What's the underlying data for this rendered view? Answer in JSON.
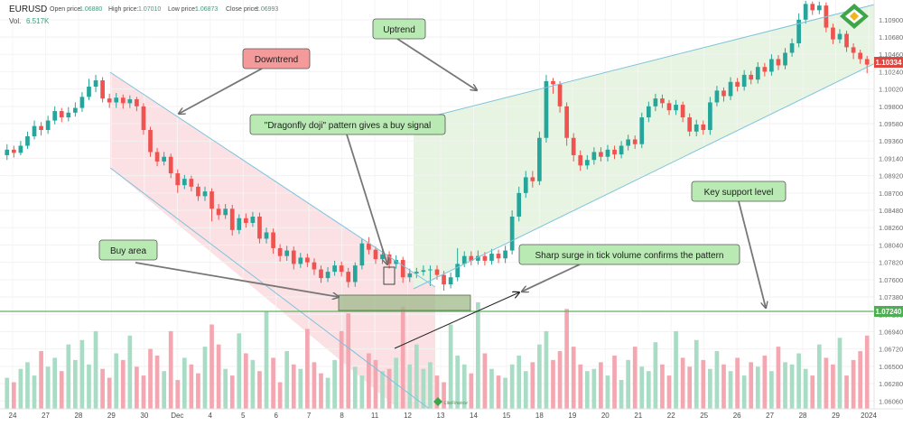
{
  "header": {
    "symbol": "EURUSD",
    "open_label": "Open price:",
    "open_value": "1.06880",
    "high_label": "High price:",
    "high_value": "1.07010",
    "low_label": "Low price:",
    "low_value": "1.06873",
    "close_label": "Close price:",
    "close_value": "1.06993",
    "vol_label": "Vol.",
    "vol_value": "6.517K"
  },
  "price_tags": {
    "current": "1.10334",
    "support": "1.07240"
  },
  "annotations": {
    "downtrend": "Downtrend",
    "uptrend": "Uptrend",
    "doji": "\"Dragonfly doji\" pattern gives a buy signal",
    "key_support": "Key support level",
    "buy_area": "Buy area",
    "surge": "Sharp surge in tick volume confirms the pattern"
  },
  "logo_text": "LiteFinance",
  "colors": {
    "bull": "#26a69a",
    "bear": "#ef5350",
    "bull_volume": "#a8dcc4",
    "bear_volume": "#f4a7b0",
    "downtrend_fill": "#fbe0e4",
    "uptrend_fill": "#e6f4e1",
    "channel_line": "#7ec3dd",
    "support_line": "#5fb560",
    "callout_green": "#b9eab4",
    "callout_red": "#f59a9a",
    "buy_area_fill": "#9fb98a"
  },
  "chart_data": {
    "type": "candlestick",
    "series": [
      {
        "name": "EURUSD",
        "kind": "ohlc"
      },
      {
        "name": "Vol.",
        "kind": "volume"
      }
    ],
    "y_ticks": [
      "1.10900",
      "1.10680",
      "1.10460",
      "1.10240",
      "1.10020",
      "1.09800",
      "1.09580",
      "1.09360",
      "1.09140",
      "1.08920",
      "1.08700",
      "1.08480",
      "1.08260",
      "1.08040",
      "1.07820",
      "1.07600",
      "1.07380",
      "1.07160",
      "1.06940",
      "1.06720",
      "1.06500",
      "1.06280",
      "1.06060"
    ],
    "x_ticks": [
      "24",
      "27",
      "28",
      "29",
      "30",
      "Dec",
      "4",
      "5",
      "6",
      "7",
      "8",
      "11",
      "12",
      "13",
      "14",
      "15",
      "18",
      "19",
      "20",
      "21",
      "22",
      "25",
      "26",
      "27",
      "28",
      "29",
      "2024"
    ],
    "ylim": [
      1.0596,
      1.1115
    ],
    "key_support_level": 1.0724,
    "current_price": 1.10334,
    "candles": [
      {
        "o": 1.0918,
        "c": 1.0925,
        "h": 1.0932,
        "l": 1.0912
      },
      {
        "o": 1.0925,
        "c": 1.0921,
        "h": 1.093,
        "l": 1.0915
      },
      {
        "o": 1.0921,
        "c": 1.093,
        "h": 1.0936,
        "l": 1.0918
      },
      {
        "o": 1.093,
        "c": 1.0942,
        "h": 1.0948,
        "l": 1.0926
      },
      {
        "o": 1.0942,
        "c": 1.0955,
        "h": 1.0962,
        "l": 1.0938
      },
      {
        "o": 1.0955,
        "c": 1.095,
        "h": 1.096,
        "l": 1.0943
      },
      {
        "o": 1.095,
        "c": 1.0962,
        "h": 1.0968,
        "l": 1.0945
      },
      {
        "o": 1.0962,
        "c": 1.0974,
        "h": 1.098,
        "l": 1.0957
      },
      {
        "o": 1.0974,
        "c": 1.0966,
        "h": 1.0978,
        "l": 1.096
      },
      {
        "o": 1.0966,
        "c": 1.0972,
        "h": 1.0979,
        "l": 1.0961
      },
      {
        "o": 1.0972,
        "c": 1.0978,
        "h": 1.0985,
        "l": 1.0967
      },
      {
        "o": 1.0978,
        "c": 1.0992,
        "h": 1.0998,
        "l": 1.0973
      },
      {
        "o": 1.0992,
        "c": 1.1005,
        "h": 1.1015,
        "l": 1.0988
      },
      {
        "o": 1.1005,
        "c": 1.1013,
        "h": 1.102,
        "l": 1.0998
      },
      {
        "o": 1.1013,
        "c": 1.099,
        "h": 1.1017,
        "l": 1.0985
      },
      {
        "o": 1.099,
        "c": 1.0985,
        "h": 1.0996,
        "l": 1.0978
      },
      {
        "o": 1.0985,
        "c": 1.0991,
        "h": 1.0997,
        "l": 1.0978
      },
      {
        "o": 1.0991,
        "c": 1.0984,
        "h": 1.0995,
        "l": 1.0977
      },
      {
        "o": 1.0984,
        "c": 1.0989,
        "h": 1.0994,
        "l": 1.0978
      },
      {
        "o": 1.0989,
        "c": 1.098,
        "h": 1.0992,
        "l": 1.0974
      },
      {
        "o": 1.098,
        "c": 1.095,
        "h": 1.0984,
        "l": 1.0944
      },
      {
        "o": 1.095,
        "c": 1.0922,
        "h": 1.0954,
        "l": 1.0916
      },
      {
        "o": 1.0922,
        "c": 1.091,
        "h": 1.0927,
        "l": 1.0904
      },
      {
        "o": 1.091,
        "c": 1.0916,
        "h": 1.0922,
        "l": 1.0905
      },
      {
        "o": 1.0916,
        "c": 1.0895,
        "h": 1.092,
        "l": 1.0889
      },
      {
        "o": 1.0895,
        "c": 1.088,
        "h": 1.09,
        "l": 1.087
      },
      {
        "o": 1.088,
        "c": 1.0888,
        "h": 1.0893,
        "l": 1.0875
      },
      {
        "o": 1.0888,
        "c": 1.0878,
        "h": 1.0892,
        "l": 1.0872
      },
      {
        "o": 1.0878,
        "c": 1.0866,
        "h": 1.0882,
        "l": 1.086
      },
      {
        "o": 1.0866,
        "c": 1.0872,
        "h": 1.0878,
        "l": 1.086
      },
      {
        "o": 1.0872,
        "c": 1.085,
        "h": 1.0876,
        "l": 1.0834
      },
      {
        "o": 1.085,
        "c": 1.0842,
        "h": 1.0856,
        "l": 1.0836
      },
      {
        "o": 1.0842,
        "c": 1.085,
        "h": 1.0856,
        "l": 1.0837
      },
      {
        "o": 1.085,
        "c": 1.0823,
        "h": 1.0855,
        "l": 1.0816
      },
      {
        "o": 1.0823,
        "c": 1.0838,
        "h": 1.0843,
        "l": 1.0818
      },
      {
        "o": 1.0838,
        "c": 1.0832,
        "h": 1.0844,
        "l": 1.0826
      },
      {
        "o": 1.0832,
        "c": 1.084,
        "h": 1.0846,
        "l": 1.0827
      },
      {
        "o": 1.084,
        "c": 1.0812,
        "h": 1.0845,
        "l": 1.0806
      },
      {
        "o": 1.0812,
        "c": 1.082,
        "h": 1.0826,
        "l": 1.0806
      },
      {
        "o": 1.082,
        "c": 1.08,
        "h": 1.0825,
        "l": 1.0793
      },
      {
        "o": 1.08,
        "c": 1.079,
        "h": 1.0805,
        "l": 1.0783
      },
      {
        "o": 1.079,
        "c": 1.0797,
        "h": 1.0803,
        "l": 1.0784
      },
      {
        "o": 1.0797,
        "c": 1.078,
        "h": 1.0802,
        "l": 1.0773
      },
      {
        "o": 1.078,
        "c": 1.0788,
        "h": 1.0794,
        "l": 1.0775
      },
      {
        "o": 1.0788,
        "c": 1.0782,
        "h": 1.0793,
        "l": 1.0776
      },
      {
        "o": 1.0782,
        "c": 1.0773,
        "h": 1.0787,
        "l": 1.0766
      },
      {
        "o": 1.0773,
        "c": 1.0762,
        "h": 1.0778,
        "l": 1.0756
      },
      {
        "o": 1.0762,
        "c": 1.077,
        "h": 1.0776,
        "l": 1.0757
      },
      {
        "o": 1.077,
        "c": 1.0778,
        "h": 1.0784,
        "l": 1.0765
      },
      {
        "o": 1.0778,
        "c": 1.077,
        "h": 1.0783,
        "l": 1.0764
      },
      {
        "o": 1.077,
        "c": 1.0757,
        "h": 1.0775,
        "l": 1.075
      },
      {
        "o": 1.0757,
        "c": 1.0778,
        "h": 1.0782,
        "l": 1.0751
      },
      {
        "o": 1.0778,
        "c": 1.0806,
        "h": 1.0812,
        "l": 1.0773
      },
      {
        "o": 1.0806,
        "c": 1.0798,
        "h": 1.0814,
        "l": 1.0792
      },
      {
        "o": 1.0798,
        "c": 1.0786,
        "h": 1.0802,
        "l": 1.078
      },
      {
        "o": 1.0786,
        "c": 1.0792,
        "h": 1.0798,
        "l": 1.078
      },
      {
        "o": 1.0792,
        "c": 1.078,
        "h": 1.0796,
        "l": 1.0774
      },
      {
        "o": 1.078,
        "c": 1.0785,
        "h": 1.0791,
        "l": 1.0774
      },
      {
        "o": 1.0785,
        "c": 1.0763,
        "h": 1.0789,
        "l": 1.0756
      },
      {
        "o": 1.0763,
        "c": 1.0768,
        "h": 1.0774,
        "l": 1.0757
      },
      {
        "o": 1.0768,
        "c": 1.077,
        "h": 1.0775,
        "l": 1.0762
      },
      {
        "o": 1.077,
        "c": 1.0772,
        "h": 1.0778,
        "l": 1.0765
      },
      {
        "o": 1.0772,
        "c": 1.0773,
        "h": 1.0778,
        "l": 1.0752
      },
      {
        "o": 1.0773,
        "c": 1.0766,
        "h": 1.0778,
        "l": 1.076
      },
      {
        "o": 1.0766,
        "c": 1.0754,
        "h": 1.0771,
        "l": 1.0746
      },
      {
        "o": 1.0754,
        "c": 1.0763,
        "h": 1.0769,
        "l": 1.0749
      },
      {
        "o": 1.0763,
        "c": 1.078,
        "h": 1.08,
        "l": 1.0758
      },
      {
        "o": 1.078,
        "c": 1.079,
        "h": 1.0796,
        "l": 1.0776
      },
      {
        "o": 1.079,
        "c": 1.0784,
        "h": 1.0796,
        "l": 1.0778
      },
      {
        "o": 1.0784,
        "c": 1.079,
        "h": 1.0797,
        "l": 1.0779
      },
      {
        "o": 1.079,
        "c": 1.0784,
        "h": 1.0795,
        "l": 1.0778
      },
      {
        "o": 1.0784,
        "c": 1.0793,
        "h": 1.0799,
        "l": 1.0779
      },
      {
        "o": 1.0793,
        "c": 1.0787,
        "h": 1.0798,
        "l": 1.0781
      },
      {
        "o": 1.0787,
        "c": 1.0797,
        "h": 1.0803,
        "l": 1.0781
      },
      {
        "o": 1.0797,
        "c": 1.084,
        "h": 1.0848,
        "l": 1.0792
      },
      {
        "o": 1.084,
        "c": 1.087,
        "h": 1.0878,
        "l": 1.0834
      },
      {
        "o": 1.087,
        "c": 1.089,
        "h": 1.0898,
        "l": 1.0864
      },
      {
        "o": 1.089,
        "c": 1.0885,
        "h": 1.0898,
        "l": 1.0877
      },
      {
        "o": 1.0885,
        "c": 1.094,
        "h": 1.0948,
        "l": 1.088
      },
      {
        "o": 1.094,
        "c": 1.1012,
        "h": 1.102,
        "l": 1.0934
      },
      {
        "o": 1.1012,
        "c": 1.1008,
        "h": 1.1016,
        "l": 1.0996
      },
      {
        "o": 1.1008,
        "c": 1.098,
        "h": 1.1012,
        "l": 1.0972
      },
      {
        "o": 1.098,
        "c": 1.094,
        "h": 1.0985,
        "l": 1.093
      },
      {
        "o": 1.094,
        "c": 1.0918,
        "h": 1.0946,
        "l": 1.091
      },
      {
        "o": 1.0918,
        "c": 1.0905,
        "h": 1.0924,
        "l": 1.0898
      },
      {
        "o": 1.0905,
        "c": 1.0912,
        "h": 1.0918,
        "l": 1.09
      },
      {
        "o": 1.0912,
        "c": 1.0922,
        "h": 1.0928,
        "l": 1.0906
      },
      {
        "o": 1.0922,
        "c": 1.0916,
        "h": 1.0928,
        "l": 1.091
      },
      {
        "o": 1.0916,
        "c": 1.0925,
        "h": 1.0931,
        "l": 1.091
      },
      {
        "o": 1.0925,
        "c": 1.0919,
        "h": 1.093,
        "l": 1.0913
      },
      {
        "o": 1.0919,
        "c": 1.093,
        "h": 1.0936,
        "l": 1.0914
      },
      {
        "o": 1.093,
        "c": 1.0938,
        "h": 1.0944,
        "l": 1.0924
      },
      {
        "o": 1.0938,
        "c": 1.0932,
        "h": 1.0943,
        "l": 1.0926
      },
      {
        "o": 1.0932,
        "c": 1.0966,
        "h": 1.0972,
        "l": 1.0927
      },
      {
        "o": 1.0966,
        "c": 1.098,
        "h": 1.0986,
        "l": 1.096
      },
      {
        "o": 1.098,
        "c": 1.099,
        "h": 1.0996,
        "l": 1.0974
      },
      {
        "o": 1.099,
        "c": 1.0984,
        "h": 1.0995,
        "l": 1.0978
      },
      {
        "o": 1.0984,
        "c": 1.0975,
        "h": 1.0988,
        "l": 1.0969
      },
      {
        "o": 1.0975,
        "c": 1.0982,
        "h": 1.0988,
        "l": 1.0969
      },
      {
        "o": 1.0982,
        "c": 1.0966,
        "h": 1.0986,
        "l": 1.096
      },
      {
        "o": 1.0966,
        "c": 1.0948,
        "h": 1.0971,
        "l": 1.0942
      },
      {
        "o": 1.0948,
        "c": 1.0957,
        "h": 1.0963,
        "l": 1.0942
      },
      {
        "o": 1.0957,
        "c": 1.095,
        "h": 1.0962,
        "l": 1.0944
      },
      {
        "o": 1.095,
        "c": 1.0985,
        "h": 1.0992,
        "l": 1.0944
      },
      {
        "o": 1.0985,
        "c": 1.1,
        "h": 1.1006,
        "l": 1.098
      },
      {
        "o": 1.1,
        "c": 1.0993,
        "h": 1.1004,
        "l": 1.0986
      },
      {
        "o": 1.0993,
        "c": 1.1011,
        "h": 1.1017,
        "l": 1.0988
      },
      {
        "o": 1.1011,
        "c": 1.1005,
        "h": 1.1016,
        "l": 1.0999
      },
      {
        "o": 1.1005,
        "c": 1.102,
        "h": 1.1026,
        "l": 1.1
      },
      {
        "o": 1.102,
        "c": 1.1014,
        "h": 1.1025,
        "l": 1.1008
      },
      {
        "o": 1.1014,
        "c": 1.103,
        "h": 1.1036,
        "l": 1.1009
      },
      {
        "o": 1.103,
        "c": 1.1024,
        "h": 1.1035,
        "l": 1.1018
      },
      {
        "o": 1.1024,
        "c": 1.104,
        "h": 1.1046,
        "l": 1.1019
      },
      {
        "o": 1.104,
        "c": 1.1032,
        "h": 1.1045,
        "l": 1.1026
      },
      {
        "o": 1.1032,
        "c": 1.1048,
        "h": 1.1054,
        "l": 1.1027
      },
      {
        "o": 1.1048,
        "c": 1.106,
        "h": 1.1066,
        "l": 1.1043
      },
      {
        "o": 1.106,
        "c": 1.109,
        "h": 1.1098,
        "l": 1.1055
      },
      {
        "o": 1.109,
        "c": 1.111,
        "h": 1.1114,
        "l": 1.1085
      },
      {
        "o": 1.111,
        "c": 1.1102,
        "h": 1.1113,
        "l": 1.1096
      },
      {
        "o": 1.1102,
        "c": 1.1108,
        "h": 1.1113,
        "l": 1.1097
      },
      {
        "o": 1.1108,
        "c": 1.108,
        "h": 1.1112,
        "l": 1.1074
      },
      {
        "o": 1.108,
        "c": 1.1065,
        "h": 1.1085,
        "l": 1.1059
      },
      {
        "o": 1.1065,
        "c": 1.1072,
        "h": 1.1078,
        "l": 1.106
      },
      {
        "o": 1.1072,
        "c": 1.1055,
        "h": 1.1076,
        "l": 1.1049
      },
      {
        "o": 1.1055,
        "c": 1.1048,
        "h": 1.106,
        "l": 1.104
      },
      {
        "o": 1.1048,
        "c": 1.104,
        "h": 1.1052,
        "l": 1.1034
      },
      {
        "o": 1.104,
        "c": 1.1033,
        "h": 1.1044,
        "l": 1.1022
      }
    ],
    "volume_max": 1.0,
    "volumes": [
      0.28,
      0.24,
      0.36,
      0.42,
      0.3,
      0.52,
      0.38,
      0.46,
      0.34,
      0.58,
      0.44,
      0.62,
      0.4,
      0.7,
      0.36,
      0.28,
      0.5,
      0.44,
      0.66,
      0.38,
      0.3,
      0.54,
      0.48,
      0.34,
      0.7,
      0.26,
      0.46,
      0.4,
      0.32,
      0.56,
      0.76,
      0.58,
      0.36,
      0.3,
      0.68,
      0.5,
      0.44,
      0.34,
      0.88,
      0.46,
      0.24,
      0.52,
      0.4,
      0.36,
      0.72,
      0.42,
      0.32,
      0.28,
      0.44,
      0.7,
      0.86,
      0.38,
      0.3,
      0.5,
      0.44,
      0.34,
      0.36,
      0.46,
      0.92,
      0.4,
      0.58,
      0.36,
      0.42,
      0.3,
      0.24,
      0.76,
      0.48,
      0.4,
      0.32,
      0.96,
      0.5,
      0.36,
      0.3,
      0.28,
      0.4,
      0.48,
      0.34,
      0.42,
      0.58,
      0.7,
      0.44,
      0.52,
      0.9,
      0.56,
      0.4,
      0.34,
      0.36,
      0.42,
      0.3,
      0.48,
      0.26,
      0.44,
      0.56,
      0.38,
      0.34,
      0.6,
      0.4,
      0.3,
      0.7,
      0.46,
      0.38,
      0.62,
      0.44,
      0.36,
      0.52,
      0.4,
      0.34,
      0.46,
      0.3,
      0.42,
      0.38,
      0.48,
      0.34,
      0.56,
      0.42,
      0.4,
      0.5,
      0.36,
      0.3,
      0.58,
      0.46,
      0.4,
      0.64,
      0.3,
      0.44,
      0.52,
      0.66,
      0.42,
      0.28,
      0.24
    ]
  }
}
